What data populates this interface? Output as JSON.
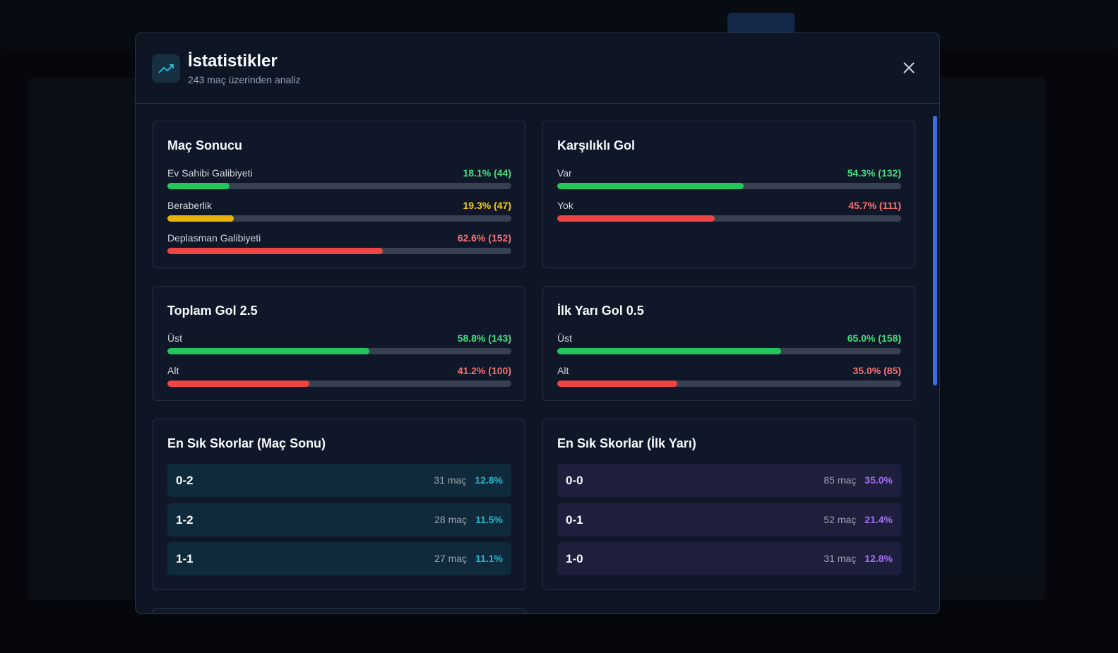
{
  "header": {
    "title": "İstatistikler",
    "subtitle": "243 maç üzerinden analiz"
  },
  "panels": [
    {
      "title": "Maç Sonucu",
      "bars": [
        {
          "label": "Ev Sahibi Galibiyeti",
          "value": 18.1,
          "value_label": "18.1% (44)",
          "color": "green"
        },
        {
          "label": "Beraberlik",
          "value": 19.3,
          "value_label": "19.3% (47)",
          "color": "yellow"
        },
        {
          "label": "Deplasman Galibiyeti",
          "value": 62.6,
          "value_label": "62.6% (152)",
          "color": "red"
        }
      ]
    },
    {
      "title": "Karşılıklı Gol",
      "bars": [
        {
          "label": "Var",
          "value": 54.3,
          "value_label": "54.3% (132)",
          "color": "green"
        },
        {
          "label": "Yok",
          "value": 45.7,
          "value_label": "45.7% (111)",
          "color": "red"
        }
      ]
    },
    {
      "title": "Toplam Gol 2.5",
      "bars": [
        {
          "label": "Üst",
          "value": 58.8,
          "value_label": "58.8% (143)",
          "color": "green"
        },
        {
          "label": "Alt",
          "value": 41.2,
          "value_label": "41.2% (100)",
          "color": "red"
        }
      ]
    },
    {
      "title": "İlk Yarı Gol 0.5",
      "bars": [
        {
          "label": "Üst",
          "value": 65.0,
          "value_label": "65.0% (158)",
          "color": "green"
        },
        {
          "label": "Alt",
          "value": 35.0,
          "value_label": "35.0% (85)",
          "color": "red"
        }
      ]
    },
    {
      "title": "En Sık Skorlar (Maç Sonu)",
      "color": "cyan",
      "scores": [
        {
          "score": "0-2",
          "matches": "31 maç",
          "share": "12.8%"
        },
        {
          "score": "1-2",
          "matches": "28 maç",
          "share": "11.5%"
        },
        {
          "score": "1-1",
          "matches": "27 maç",
          "share": "11.1%"
        }
      ]
    },
    {
      "title": "En Sık Skorlar (İlk Yarı)",
      "color": "purple",
      "scores": [
        {
          "score": "0-0",
          "matches": "85 maç",
          "share": "35.0%"
        },
        {
          "score": "0-1",
          "matches": "52 maç",
          "share": "21.4%"
        },
        {
          "score": "1-0",
          "matches": "31 maç",
          "share": "12.8%"
        }
      ]
    }
  ]
}
